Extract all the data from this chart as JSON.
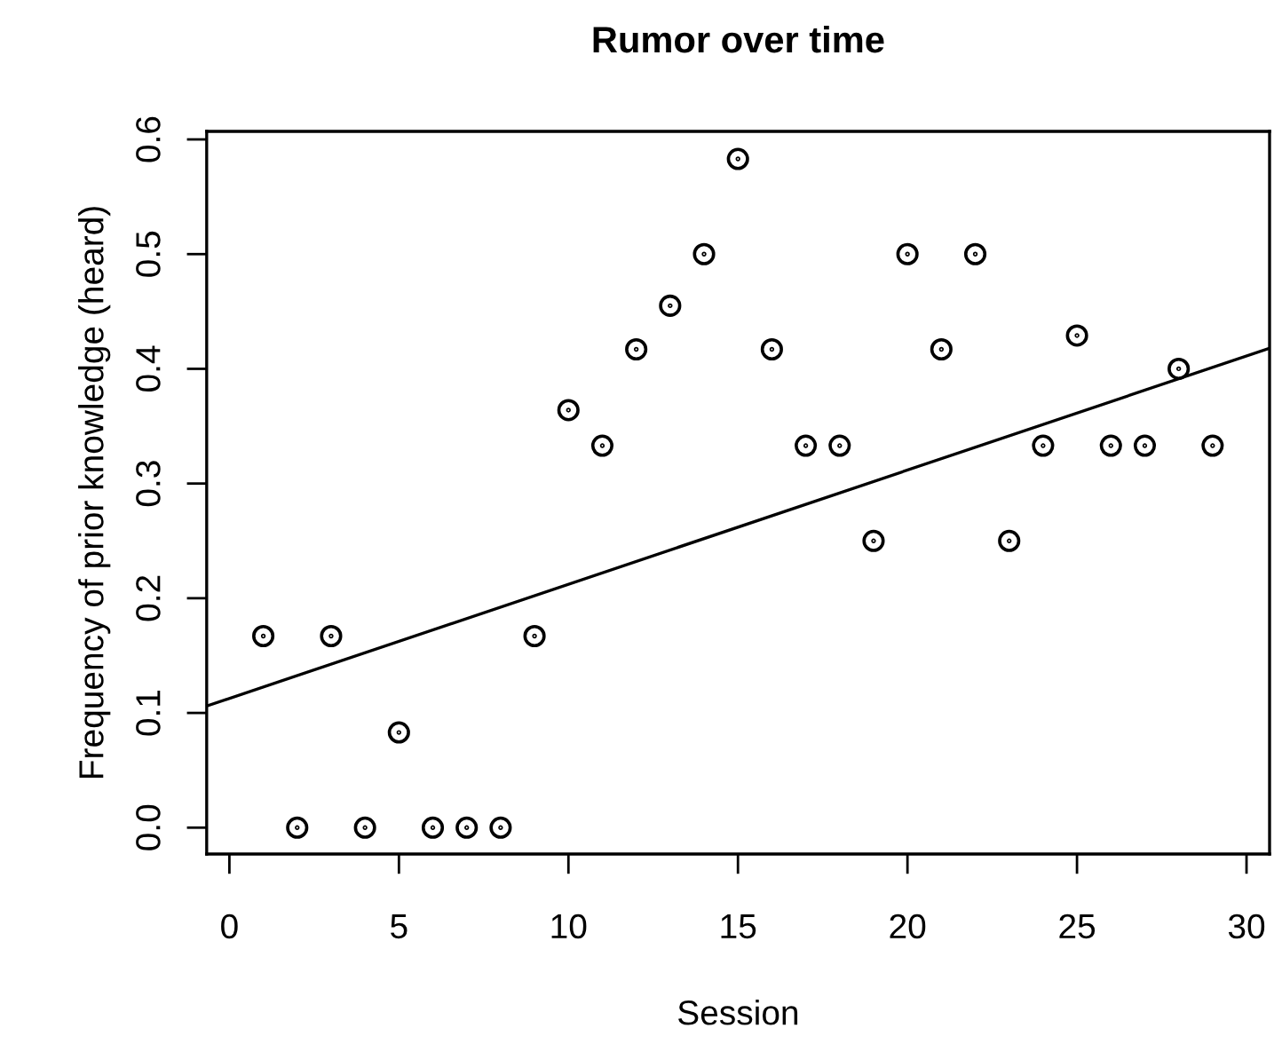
{
  "chart_data": {
    "type": "scatter",
    "title": "Rumor over time",
    "xlabel": "Session",
    "ylabel": "Frequency of prior knowledge (heard)",
    "xlim": [
      -0.67,
      30.68
    ],
    "ylim": [
      -0.023,
      0.607
    ],
    "xticks": [
      0,
      5,
      10,
      15,
      20,
      25,
      30
    ],
    "yticks": [
      {
        "value": 0,
        "label": "0.0"
      },
      0.1,
      0.2,
      0.3,
      0.4,
      0.5,
      0.6
    ],
    "grid": false,
    "legend": false,
    "series": [
      {
        "marker": "circle",
        "color": "#000000",
        "x": [
          1,
          2,
          3,
          4,
          5,
          6,
          7,
          8,
          9,
          10,
          11,
          12,
          13,
          14,
          15,
          16,
          17,
          18,
          19,
          20,
          21,
          22,
          23,
          24,
          25,
          26,
          27,
          28,
          29
        ],
        "values": [
          0.167,
          0,
          0.167,
          0,
          0.083,
          0,
          0,
          0,
          0.167,
          0.364,
          0.333,
          0.417,
          0.455,
          0.5,
          0.583,
          0.417,
          0.333,
          0.333,
          0.25,
          0.5,
          0.417,
          0.5,
          0.25,
          0.333,
          0.429,
          0.333,
          0.333,
          0.4,
          0.333
        ]
      },
      {
        "type": "line",
        "marker": "none",
        "color": "#000000",
        "x": [
          -0.67,
          30.68
        ],
        "values": [
          0.106,
          0.418
        ]
      }
    ]
  }
}
